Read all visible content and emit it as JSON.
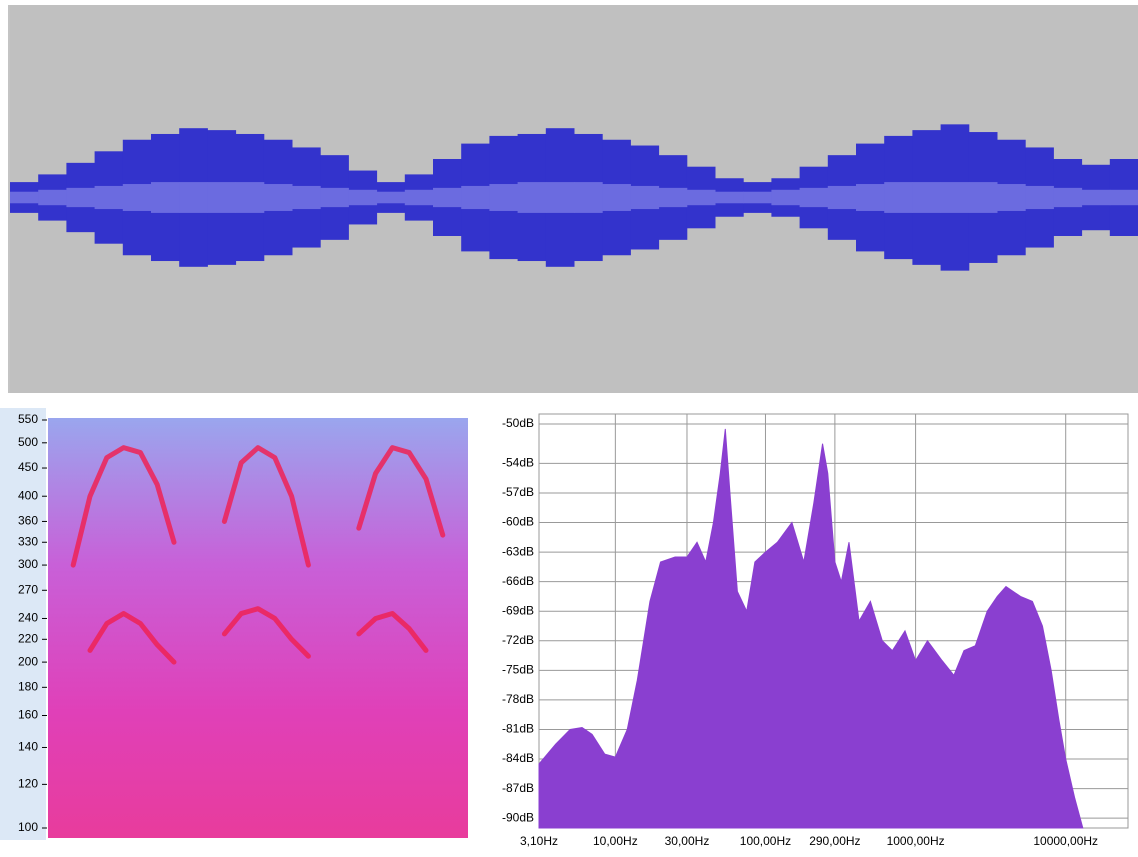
{
  "chart_data": [
    {
      "type": "waveform",
      "categories": [
        null,
        null,
        null,
        null,
        null,
        null,
        null,
        null,
        null,
        null,
        null,
        null,
        null,
        null,
        null,
        null,
        null,
        null,
        null,
        null,
        null,
        null,
        null,
        null,
        null,
        null,
        null,
        null,
        null,
        null,
        null,
        null,
        null,
        null,
        null,
        null,
        null,
        null,
        null,
        null
      ],
      "ylim": [
        -1,
        1
      ],
      "series": [
        {
          "color": "#3333cc",
          "values": [
            0.08,
            0.12,
            0.18,
            0.24,
            0.3,
            0.33,
            0.36,
            0.35,
            0.33,
            0.3,
            0.26,
            0.22,
            0.14,
            0.08,
            0.12,
            0.2,
            0.28,
            0.32,
            0.33,
            0.36,
            0.33,
            0.3,
            0.27,
            0.22,
            0.16,
            0.1,
            0.08,
            0.1,
            0.16,
            0.22,
            0.28,
            0.32,
            0.35,
            0.38,
            0.34,
            0.3,
            0.26,
            0.2,
            0.17,
            0.2
          ]
        },
        {
          "color": "#6b6be0",
          "values": [
            0.03,
            0.04,
            0.05,
            0.06,
            0.07,
            0.08,
            0.08,
            0.08,
            0.08,
            0.07,
            0.06,
            0.05,
            0.04,
            0.03,
            0.04,
            0.05,
            0.06,
            0.07,
            0.08,
            0.08,
            0.08,
            0.07,
            0.06,
            0.05,
            0.04,
            0.03,
            0.03,
            0.04,
            0.05,
            0.06,
            0.07,
            0.08,
            0.08,
            0.08,
            0.08,
            0.07,
            0.06,
            0.05,
            0.04,
            0.04
          ]
        }
      ]
    },
    {
      "type": "spectrogram",
      "categories": [
        null,
        null,
        null,
        null,
        null,
        null,
        null,
        null,
        null,
        null,
        null,
        null,
        null,
        null,
        null,
        null,
        null,
        null,
        null,
        null,
        null,
        null,
        null,
        null,
        null
      ],
      "log_y": true,
      "ylim": [
        100,
        550
      ],
      "yticks": [
        100,
        120,
        140,
        160,
        180,
        200,
        220,
        240,
        270,
        300,
        330,
        360,
        400,
        450,
        500,
        550
      ],
      "series": [
        {
          "color": "#ee2255",
          "values": [
            null,
            300,
            400,
            470,
            490,
            480,
            420,
            330,
            null,
            null,
            360,
            460,
            490,
            470,
            400,
            300,
            null,
            null,
            350,
            440,
            490,
            480,
            430,
            340,
            null
          ]
        },
        {
          "color": "#ee2255",
          "values": [
            null,
            null,
            210,
            235,
            245,
            235,
            215,
            200,
            null,
            null,
            225,
            245,
            250,
            240,
            220,
            205,
            null,
            null,
            225,
            240,
            245,
            230,
            210,
            null,
            null
          ]
        }
      ]
    },
    {
      "type": "spectrum",
      "log_x": true,
      "xlim": [
        3.1,
        26000
      ],
      "ylim": [
        -91,
        -50
      ],
      "grid": true,
      "color": "#8a3fd0",
      "xticks": [
        {
          "value": 3.1,
          "label": "3,10Hz"
        },
        {
          "value": 10,
          "label": "10,00Hz"
        },
        {
          "value": 30,
          "label": "30,00Hz"
        },
        {
          "value": 100,
          "label": "100,00Hz"
        },
        {
          "value": 290,
          "label": "290,00Hz"
        },
        {
          "value": 1000,
          "label": "1000,00Hz"
        },
        {
          "value": 10000,
          "label": "10000,00Hz"
        }
      ],
      "yticks": [
        {
          "value": -50,
          "label": "-50dB"
        },
        {
          "value": -54,
          "label": "-54dB"
        },
        {
          "value": -57,
          "label": "-57dB"
        },
        {
          "value": -60,
          "label": "-60dB"
        },
        {
          "value": -63,
          "label": "-63dB"
        },
        {
          "value": -66,
          "label": "-66dB"
        },
        {
          "value": -69,
          "label": "-69dB"
        },
        {
          "value": -72,
          "label": "-72dB"
        },
        {
          "value": -75,
          "label": "-75dB"
        },
        {
          "value": -78,
          "label": "-78dB"
        },
        {
          "value": -81,
          "label": "-81dB"
        },
        {
          "value": -84,
          "label": "-84dB"
        },
        {
          "value": -87,
          "label": "-87dB"
        },
        {
          "value": -90,
          "label": "-90dB"
        }
      ],
      "x": [
        3.1,
        4,
        5,
        6,
        7,
        8.5,
        10,
        12,
        14,
        17,
        20,
        25,
        30,
        35,
        40,
        45,
        50,
        54,
        58,
        65,
        75,
        85,
        100,
        120,
        150,
        180,
        210,
        240,
        260,
        290,
        320,
        360,
        420,
        500,
        600,
        700,
        850,
        1000,
        1200,
        1500,
        1800,
        2100,
        2500,
        3000,
        3500,
        4000,
        5000,
        6000,
        7000,
        8000,
        9000,
        10000,
        11500,
        13000
      ],
      "values": [
        -84.5,
        -82.5,
        -81,
        -80.8,
        -81.5,
        -83.5,
        -83.8,
        -81,
        -76,
        -68,
        -64,
        -63.5,
        -63.5,
        -62,
        -64,
        -60,
        -55,
        -50.5,
        -57,
        -67,
        -69,
        -64,
        -63,
        -62,
        -60,
        -64,
        -58,
        -52,
        -55,
        -64,
        -66,
        -62,
        -70,
        -68,
        -72,
        -73,
        -71,
        -74,
        -72,
        -74,
        -75.5,
        -73,
        -72.5,
        -69,
        -67.5,
        -66.5,
        -67.5,
        -68,
        -70.5,
        -75,
        -80,
        -84,
        -88,
        -91
      ]
    }
  ]
}
